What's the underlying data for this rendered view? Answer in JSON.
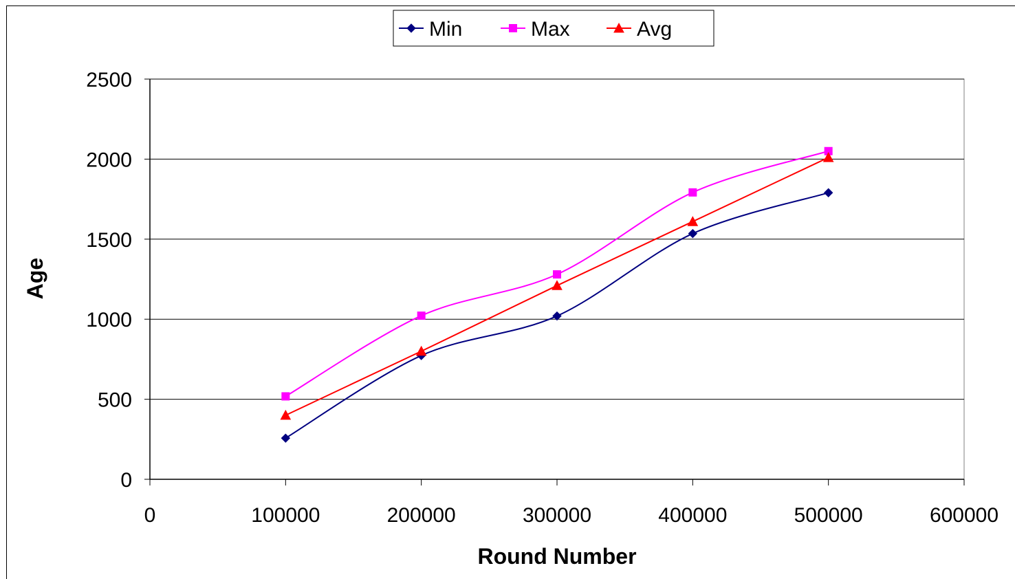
{
  "chart_data": {
    "type": "line",
    "title": "",
    "xlabel": "Round Number",
    "ylabel": "Age",
    "xlim": [
      0,
      600000
    ],
    "ylim": [
      0,
      2500
    ],
    "x_ticks": [
      "0",
      "100000",
      "200000",
      "300000",
      "400000",
      "500000",
      "600000"
    ],
    "y_ticks": [
      "0",
      "500",
      "1000",
      "1500",
      "2000",
      "2500"
    ],
    "grid": "horizontal",
    "legend_position": "top-center",
    "x": [
      100000,
      200000,
      300000,
      400000,
      500000
    ],
    "series": [
      {
        "name": "Min",
        "values": [
          257,
          773,
          1020,
          1535,
          1790
        ],
        "color": "#000080",
        "marker": "diamond"
      },
      {
        "name": "Max",
        "values": [
          518,
          1022,
          1280,
          1792,
          2050
        ],
        "color": "#ff00ff",
        "marker": "square"
      },
      {
        "name": "Avg",
        "values": [
          400,
          800,
          1210,
          1610,
          2010
        ],
        "color": "#ff0000",
        "marker": "triangle"
      }
    ]
  }
}
